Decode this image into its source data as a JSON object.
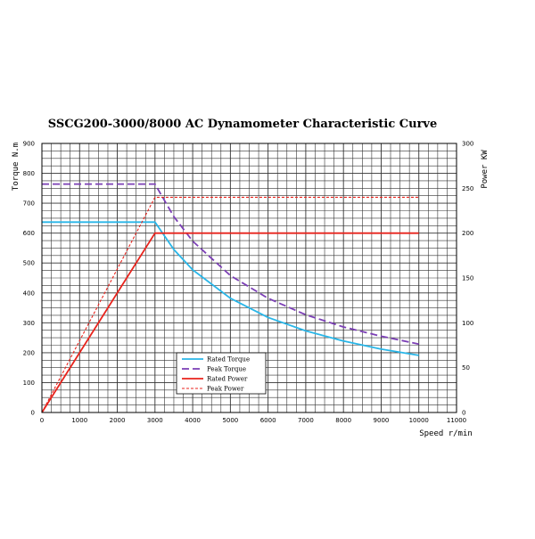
{
  "chart_data": {
    "type": "line",
    "title": "SSCG200-3000/8000 AC Dynamometer Characteristic Curve",
    "xlabel": "Speed r/min",
    "ylabel_left": "Torque N.m",
    "ylabel_right": "Power KW",
    "xlim": [
      0,
      11000
    ],
    "ylim_left": [
      0,
      900
    ],
    "ylim_right": [
      0,
      300
    ],
    "x_ticks": [
      "0",
      "1000",
      "2000",
      "3000",
      "4000",
      "5000",
      "6000",
      "7000",
      "8000",
      "9000",
      "10000",
      "11000"
    ],
    "y_left_ticks": [
      "0",
      "100",
      "200",
      "300",
      "400",
      "500",
      "600",
      "700",
      "800",
      "900"
    ],
    "y_right_ticks": [
      "0",
      "50",
      "100",
      "150",
      "200",
      "250",
      "300"
    ],
    "grid": true,
    "legend_position": "bottom-left",
    "series": [
      {
        "name": "Rated Torque",
        "axis": "left",
        "color": "#29b6e8",
        "dash": "solid",
        "x": [
          0,
          3000,
          3500,
          4000,
          5000,
          6000,
          7000,
          8000,
          9000,
          10000
        ],
        "y": [
          637,
          637,
          545,
          477,
          382,
          318,
          273,
          239,
          212,
          191
        ]
      },
      {
        "name": "Peak Torque",
        "axis": "left",
        "color": "#7b3fb5",
        "dash": "long",
        "x": [
          0,
          3000,
          3500,
          4000,
          5000,
          6000,
          7000,
          8000,
          9000,
          10000
        ],
        "y": [
          764,
          764,
          655,
          573,
          458,
          382,
          327,
          286,
          255,
          229
        ]
      },
      {
        "name": "Rated Power",
        "axis": "right",
        "color": "#e8231c",
        "dash": "solid",
        "x": [
          0,
          3000,
          10000
        ],
        "y": [
          0,
          200,
          200
        ]
      },
      {
        "name": "Peak Power",
        "axis": "right",
        "color": "#e8231c",
        "dash": "short",
        "x": [
          0,
          3000,
          10000
        ],
        "y": [
          0,
          240,
          240
        ]
      }
    ]
  }
}
